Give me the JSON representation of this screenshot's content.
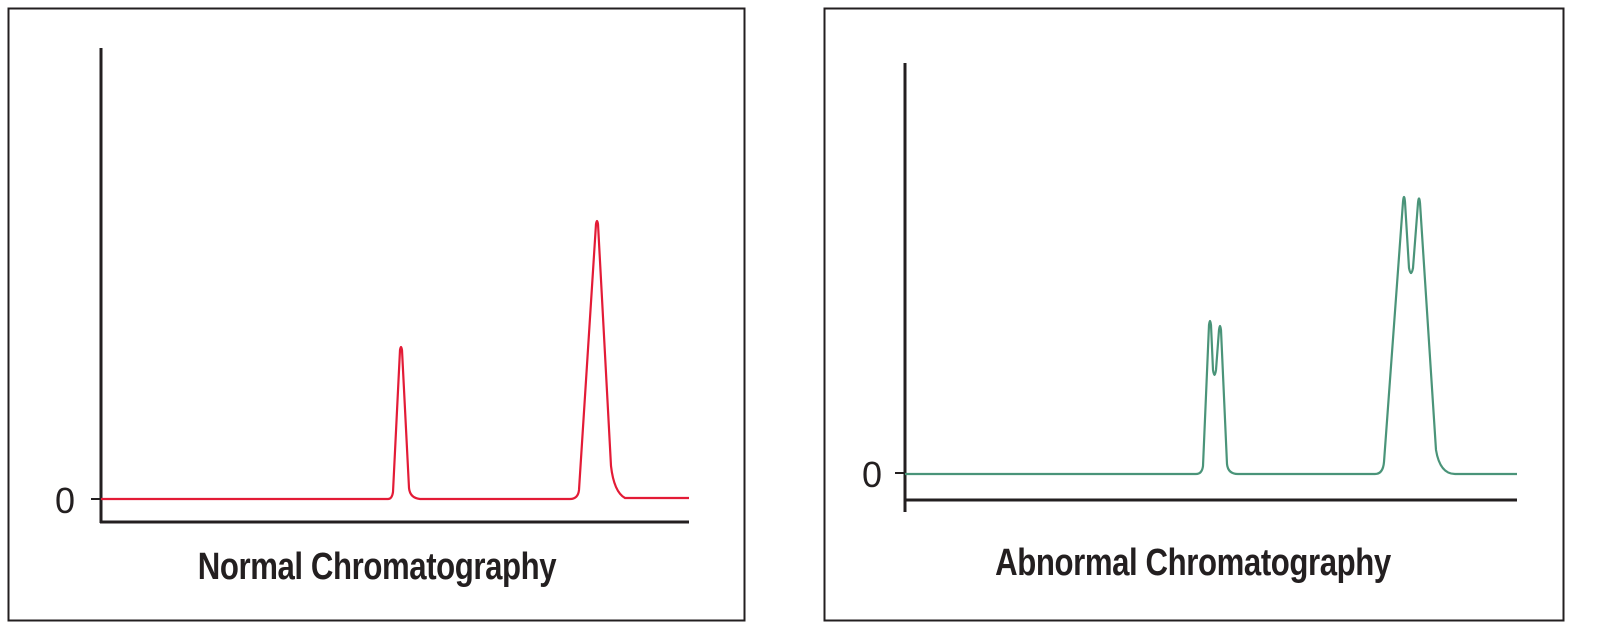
{
  "colors": {
    "normal_trace": "#e31b36",
    "abnormal_trace": "#4a9479",
    "axes": "#231f20"
  },
  "panels": [
    {
      "caption": "Normal Chromatography",
      "y_tick_label": "0",
      "peaks": "two single peaks"
    },
    {
      "caption": "Abnormal Chromatography",
      "y_tick_label": "0",
      "peaks": "two split (doublet) peaks"
    }
  ]
}
